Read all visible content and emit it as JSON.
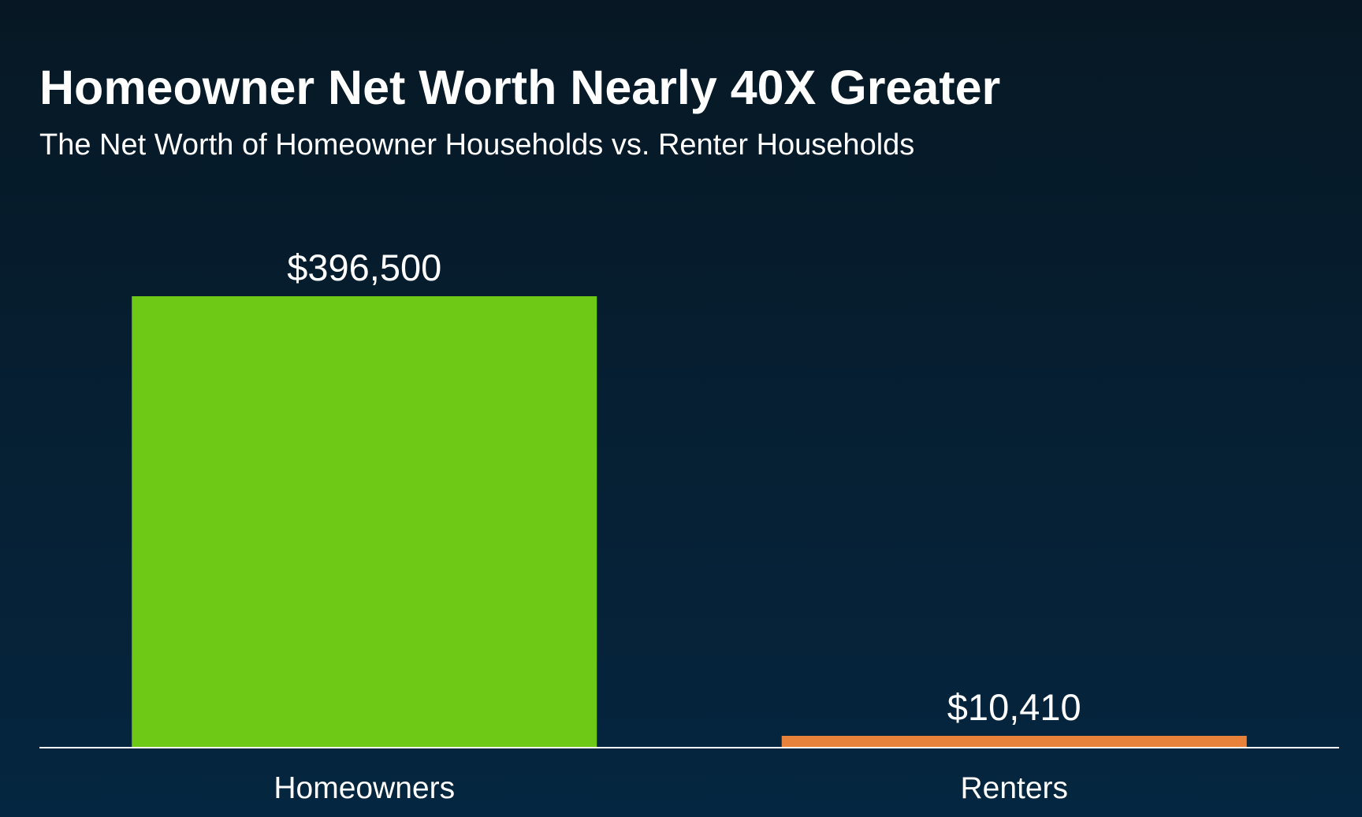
{
  "chart_data": {
    "type": "bar",
    "title": "Homeowner Net Worth Nearly 40X Greater",
    "subtitle": "The Net Worth of Homeowner Households vs. Renter Households",
    "categories": [
      "Homeowners",
      "Renters"
    ],
    "values": [
      396500,
      10410
    ],
    "value_labels": [
      "$396,500",
      "$10,410"
    ],
    "colors": [
      "#6ec916",
      "#e8823a"
    ]
  }
}
